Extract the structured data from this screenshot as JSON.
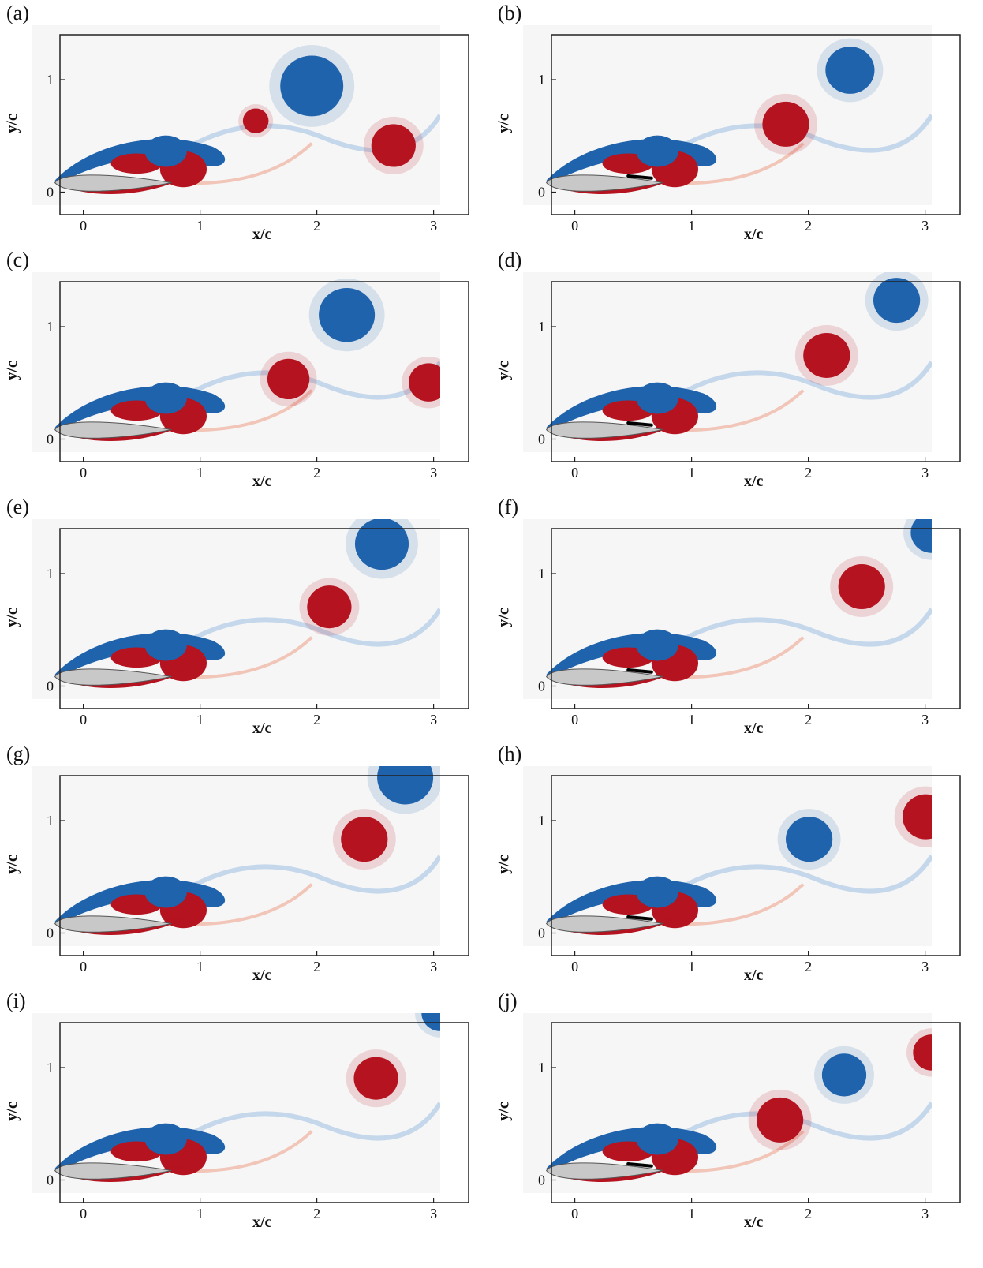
{
  "figure": {
    "panels": [
      {
        "label": "(a)",
        "flap": false
      },
      {
        "label": "(b)",
        "flap": true
      },
      {
        "label": "(c)",
        "flap": false
      },
      {
        "label": "(d)",
        "flap": true
      },
      {
        "label": "(e)",
        "flap": false
      },
      {
        "label": "(f)",
        "flap": true
      },
      {
        "label": "(g)",
        "flap": false
      },
      {
        "label": "(h)",
        "flap": true
      },
      {
        "label": "(i)",
        "flap": false
      },
      {
        "label": "(j)",
        "flap": true
      }
    ],
    "xlabel": "x/c",
    "ylabel": "y/c",
    "x_ticks": [
      "0",
      "1",
      "2",
      "3"
    ],
    "y_ticks": [
      "0",
      "1"
    ],
    "x_range": [
      -0.2,
      3.3
    ],
    "y_range": [
      -0.2,
      1.4
    ],
    "colors": {
      "positive_vorticity": "#b5131f",
      "negative_vorticity": "#1f63ad",
      "airfoil": "#c8c8c8",
      "flap": "#000000"
    }
  }
}
